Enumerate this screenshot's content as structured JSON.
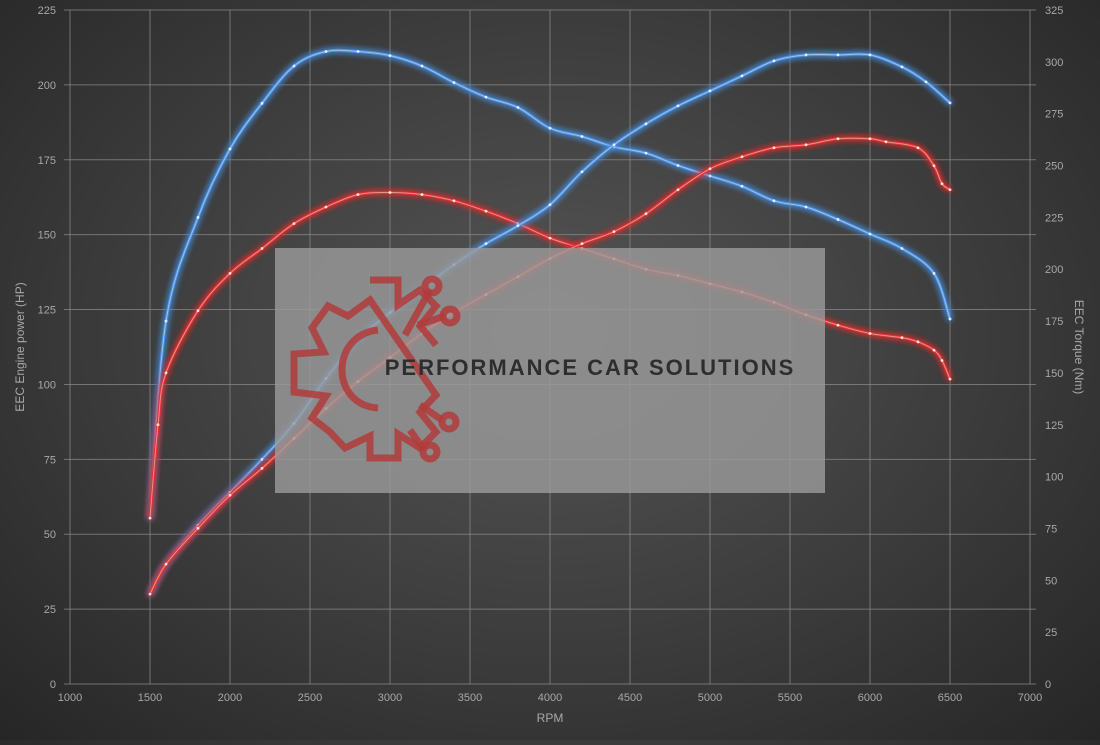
{
  "chart_data": {
    "type": "line",
    "xlabel": "RPM",
    "ylabel": "EEC Engine power (HP)",
    "y2label": "EEC Torque (Nm)",
    "xlim": [
      1000,
      7000
    ],
    "ylim": [
      0,
      225
    ],
    "y2lim": [
      0,
      325
    ],
    "x_ticks": [
      1000,
      1500,
      2000,
      2500,
      3000,
      3500,
      4000,
      4500,
      5000,
      5500,
      6000,
      6500,
      7000
    ],
    "y_ticks": [
      0,
      25,
      50,
      75,
      100,
      125,
      150,
      175,
      200,
      225
    ],
    "y2_ticks": [
      0,
      25,
      50,
      75,
      100,
      125,
      150,
      175,
      200,
      225,
      250,
      275,
      300,
      325
    ],
    "grid": true,
    "colors": {
      "tuned": "#4a90e2",
      "stock": "#e03030",
      "grid": "#8a8a8a",
      "text": "#a8a8a8"
    },
    "series": [
      {
        "group": "tuned",
        "axis": "right",
        "points": [
          [
            1500,
            80
          ],
          [
            1600,
            175
          ],
          [
            1800,
            225
          ],
          [
            2000,
            258
          ],
          [
            2200,
            280
          ],
          [
            2400,
            298
          ],
          [
            2600,
            305
          ],
          [
            2800,
            305
          ],
          [
            3000,
            303
          ],
          [
            3200,
            298
          ],
          [
            3400,
            290
          ],
          [
            3600,
            283
          ],
          [
            3800,
            278
          ],
          [
            4000,
            268
          ],
          [
            4200,
            264
          ],
          [
            4400,
            259
          ],
          [
            4600,
            256
          ],
          [
            4800,
            250
          ],
          [
            5000,
            245
          ],
          [
            5200,
            240
          ],
          [
            5400,
            233
          ],
          [
            5600,
            230
          ],
          [
            5800,
            224
          ],
          [
            6000,
            217
          ],
          [
            6200,
            210
          ],
          [
            6400,
            198
          ],
          [
            6500,
            176
          ]
        ]
      },
      {
        "group": "stock",
        "axis": "right",
        "points": [
          [
            1500,
            80
          ],
          [
            1550,
            125
          ],
          [
            1600,
            150
          ],
          [
            1800,
            180
          ],
          [
            2000,
            198
          ],
          [
            2200,
            210
          ],
          [
            2400,
            222
          ],
          [
            2600,
            230
          ],
          [
            2800,
            236
          ],
          [
            3000,
            237
          ],
          [
            3200,
            236
          ],
          [
            3400,
            233
          ],
          [
            3600,
            228
          ],
          [
            3800,
            222
          ],
          [
            4000,
            215
          ],
          [
            4200,
            210
          ],
          [
            4400,
            205
          ],
          [
            4600,
            200
          ],
          [
            4800,
            197
          ],
          [
            5000,
            193
          ],
          [
            5200,
            189
          ],
          [
            5400,
            184
          ],
          [
            5600,
            178
          ],
          [
            5800,
            173
          ],
          [
            6000,
            169
          ],
          [
            6200,
            167
          ],
          [
            6300,
            165
          ],
          [
            6400,
            161
          ],
          [
            6450,
            156
          ],
          [
            6500,
            147
          ]
        ]
      },
      {
        "group": "tuned",
        "axis": "left",
        "points": [
          [
            1500,
            30
          ],
          [
            1600,
            40
          ],
          [
            1800,
            53
          ],
          [
            2000,
            64
          ],
          [
            2200,
            75
          ],
          [
            2400,
            87
          ],
          [
            2600,
            102
          ],
          [
            2800,
            115
          ],
          [
            3000,
            124
          ],
          [
            3200,
            132
          ],
          [
            3400,
            140
          ],
          [
            3600,
            147
          ],
          [
            3800,
            153
          ],
          [
            4000,
            160
          ],
          [
            4200,
            171
          ],
          [
            4400,
            180
          ],
          [
            4600,
            187
          ],
          [
            4800,
            193
          ],
          [
            5000,
            198
          ],
          [
            5200,
            203
          ],
          [
            5400,
            208
          ],
          [
            5600,
            210
          ],
          [
            5800,
            210
          ],
          [
            6000,
            210
          ],
          [
            6200,
            206
          ],
          [
            6350,
            201
          ],
          [
            6500,
            194
          ]
        ]
      },
      {
        "group": "stock",
        "axis": "left",
        "points": [
          [
            1500,
            30
          ],
          [
            1600,
            40
          ],
          [
            1800,
            52
          ],
          [
            2000,
            63
          ],
          [
            2200,
            72
          ],
          [
            2400,
            82
          ],
          [
            2600,
            92
          ],
          [
            2800,
            101
          ],
          [
            3000,
            109
          ],
          [
            3200,
            117
          ],
          [
            3400,
            124
          ],
          [
            3600,
            130
          ],
          [
            3800,
            136
          ],
          [
            4000,
            142
          ],
          [
            4200,
            147
          ],
          [
            4400,
            151
          ],
          [
            4600,
            157
          ],
          [
            4800,
            165
          ],
          [
            5000,
            172
          ],
          [
            5200,
            176
          ],
          [
            5400,
            179
          ],
          [
            5600,
            180
          ],
          [
            5800,
            182
          ],
          [
            6000,
            182
          ],
          [
            6100,
            181
          ],
          [
            6300,
            179
          ],
          [
            6400,
            173
          ],
          [
            6450,
            167
          ],
          [
            6500,
            165
          ]
        ]
      }
    ]
  },
  "watermark": {
    "text": "PERFORMANCE CAR SOLUTIONS"
  }
}
